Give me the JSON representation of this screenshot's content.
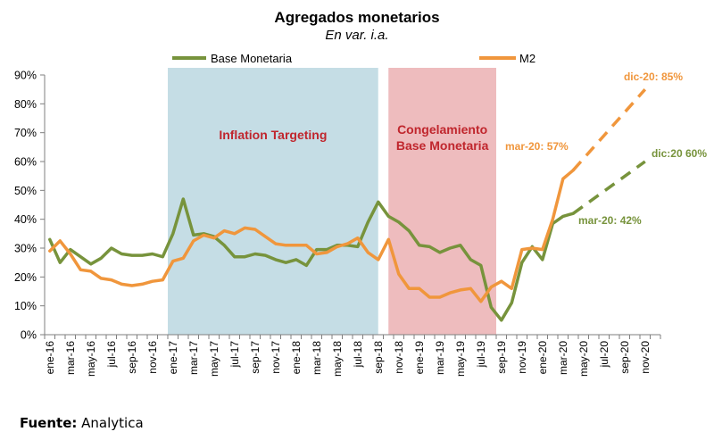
{
  "chart_data": {
    "type": "line",
    "title": "Agregados monetarios",
    "subtitle": "En var. i.a.",
    "ylim": [
      0,
      90
    ],
    "y_ticks": [
      "0%",
      "10%",
      "20%",
      "30%",
      "40%",
      "50%",
      "60%",
      "70%",
      "80%",
      "90%"
    ],
    "x_tick_labels": [
      "ene-16",
      "mar-16",
      "may-16",
      "jul-16",
      "sep-16",
      "nov-16",
      "ene-17",
      "mar-17",
      "may-17",
      "jul-17",
      "sep-17",
      "nov-17",
      "ene-18",
      "mar-18",
      "may-18",
      "jul-18",
      "sep-18",
      "nov-18",
      "ene-19",
      "mar-19",
      "may-19",
      "jul-19",
      "sep-19",
      "nov-19",
      "ene-20",
      "mar-20",
      "may-20",
      "jul-20",
      "sep-20",
      "nov-20"
    ],
    "regions": [
      {
        "label": "Inflation Targeting",
        "label_lines": [
          "Inflation Targeting"
        ],
        "start": 12,
        "end": 32.5,
        "color": "#c5dde5"
      },
      {
        "label": "Congelamiento Base Monetaria",
        "label_lines": [
          "Congelamiento",
          "Base Monetaria"
        ],
        "start": 33.5,
        "end": 44,
        "color": "#eebcbe"
      }
    ],
    "series": [
      {
        "name": "Base Monetaria",
        "color": "#77933c",
        "values": [
          33,
          25,
          29.5,
          27,
          24.5,
          26.5,
          30,
          28,
          27.5,
          27.5,
          28,
          27,
          35,
          47,
          34.5,
          35,
          34,
          31,
          27,
          27,
          28,
          27.5,
          26,
          25,
          26,
          24,
          29.5,
          29.5,
          31,
          31,
          30.5,
          39,
          46,
          41,
          39,
          36,
          31,
          30.5,
          28.5,
          30,
          31,
          26,
          24,
          9.5,
          5,
          11,
          25,
          30.5,
          26,
          38.5,
          41,
          42
        ],
        "projection": {
          "start_index": 51,
          "start_value": 42,
          "end_index": 58,
          "end_value": 60
        }
      },
      {
        "name": "M2",
        "color": "#f0963c",
        "values": [
          29,
          32.5,
          28,
          22.5,
          22,
          19.5,
          19,
          17.5,
          17,
          17.5,
          18.5,
          19,
          25.5,
          26.5,
          32.5,
          34.5,
          33.5,
          36,
          35,
          37,
          36.5,
          34,
          31.5,
          31,
          31,
          31,
          28,
          28.5,
          30.5,
          31.5,
          33.5,
          28.5,
          26,
          33,
          21,
          16,
          16,
          13,
          13,
          14.5,
          15.5,
          16,
          11.5,
          16.5,
          18.5,
          16,
          29.5,
          30,
          29.5,
          40,
          54,
          57
        ],
        "projection": {
          "start_index": 51,
          "start_value": 57,
          "end_index": 58,
          "end_value": 85
        }
      }
    ],
    "annotations": [
      {
        "text": "dic-20: 85%",
        "series": "M2"
      },
      {
        "text": "mar-20: 57%",
        "series": "M2"
      },
      {
        "text": "dic:20 60%",
        "series": "Base Monetaria"
      },
      {
        "text": "mar-20: 42%",
        "series": "Base Monetaria"
      }
    ],
    "legend_labels": [
      "Base Monetaria",
      "M2"
    ],
    "grid": false
  },
  "source": {
    "label": "Fuente:",
    "value": "Analytica"
  }
}
